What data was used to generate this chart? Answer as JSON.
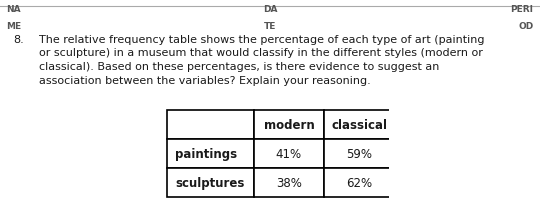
{
  "header_left_line1": "NA",
  "header_left_line2": "ME",
  "header_center_line1": "DA",
  "header_center_line2": "TE",
  "header_right_line1": "PERI",
  "header_right_line2": "OD",
  "question_number": "8.",
  "question_text": "The relative frequency table shows the percentage of each type of art (painting\nor sculpture) in a museum that would classify in the different styles (modern or\nclassical). Based on these percentages, is there evidence to suggest an\nassociation between the variables? Explain your reasoning.",
  "col_headers": [
    "modern",
    "classical"
  ],
  "rows": [
    [
      "paintings",
      "41%",
      "59%"
    ],
    [
      "sculptures",
      "38%",
      "62%"
    ]
  ],
  "bg_color": "#ffffff",
  "text_color": "#1a1a1a",
  "header_font_color": "#555555",
  "question_fontsize": 8.0,
  "header_fontsize": 6.5,
  "table_fontsize": 8.5
}
